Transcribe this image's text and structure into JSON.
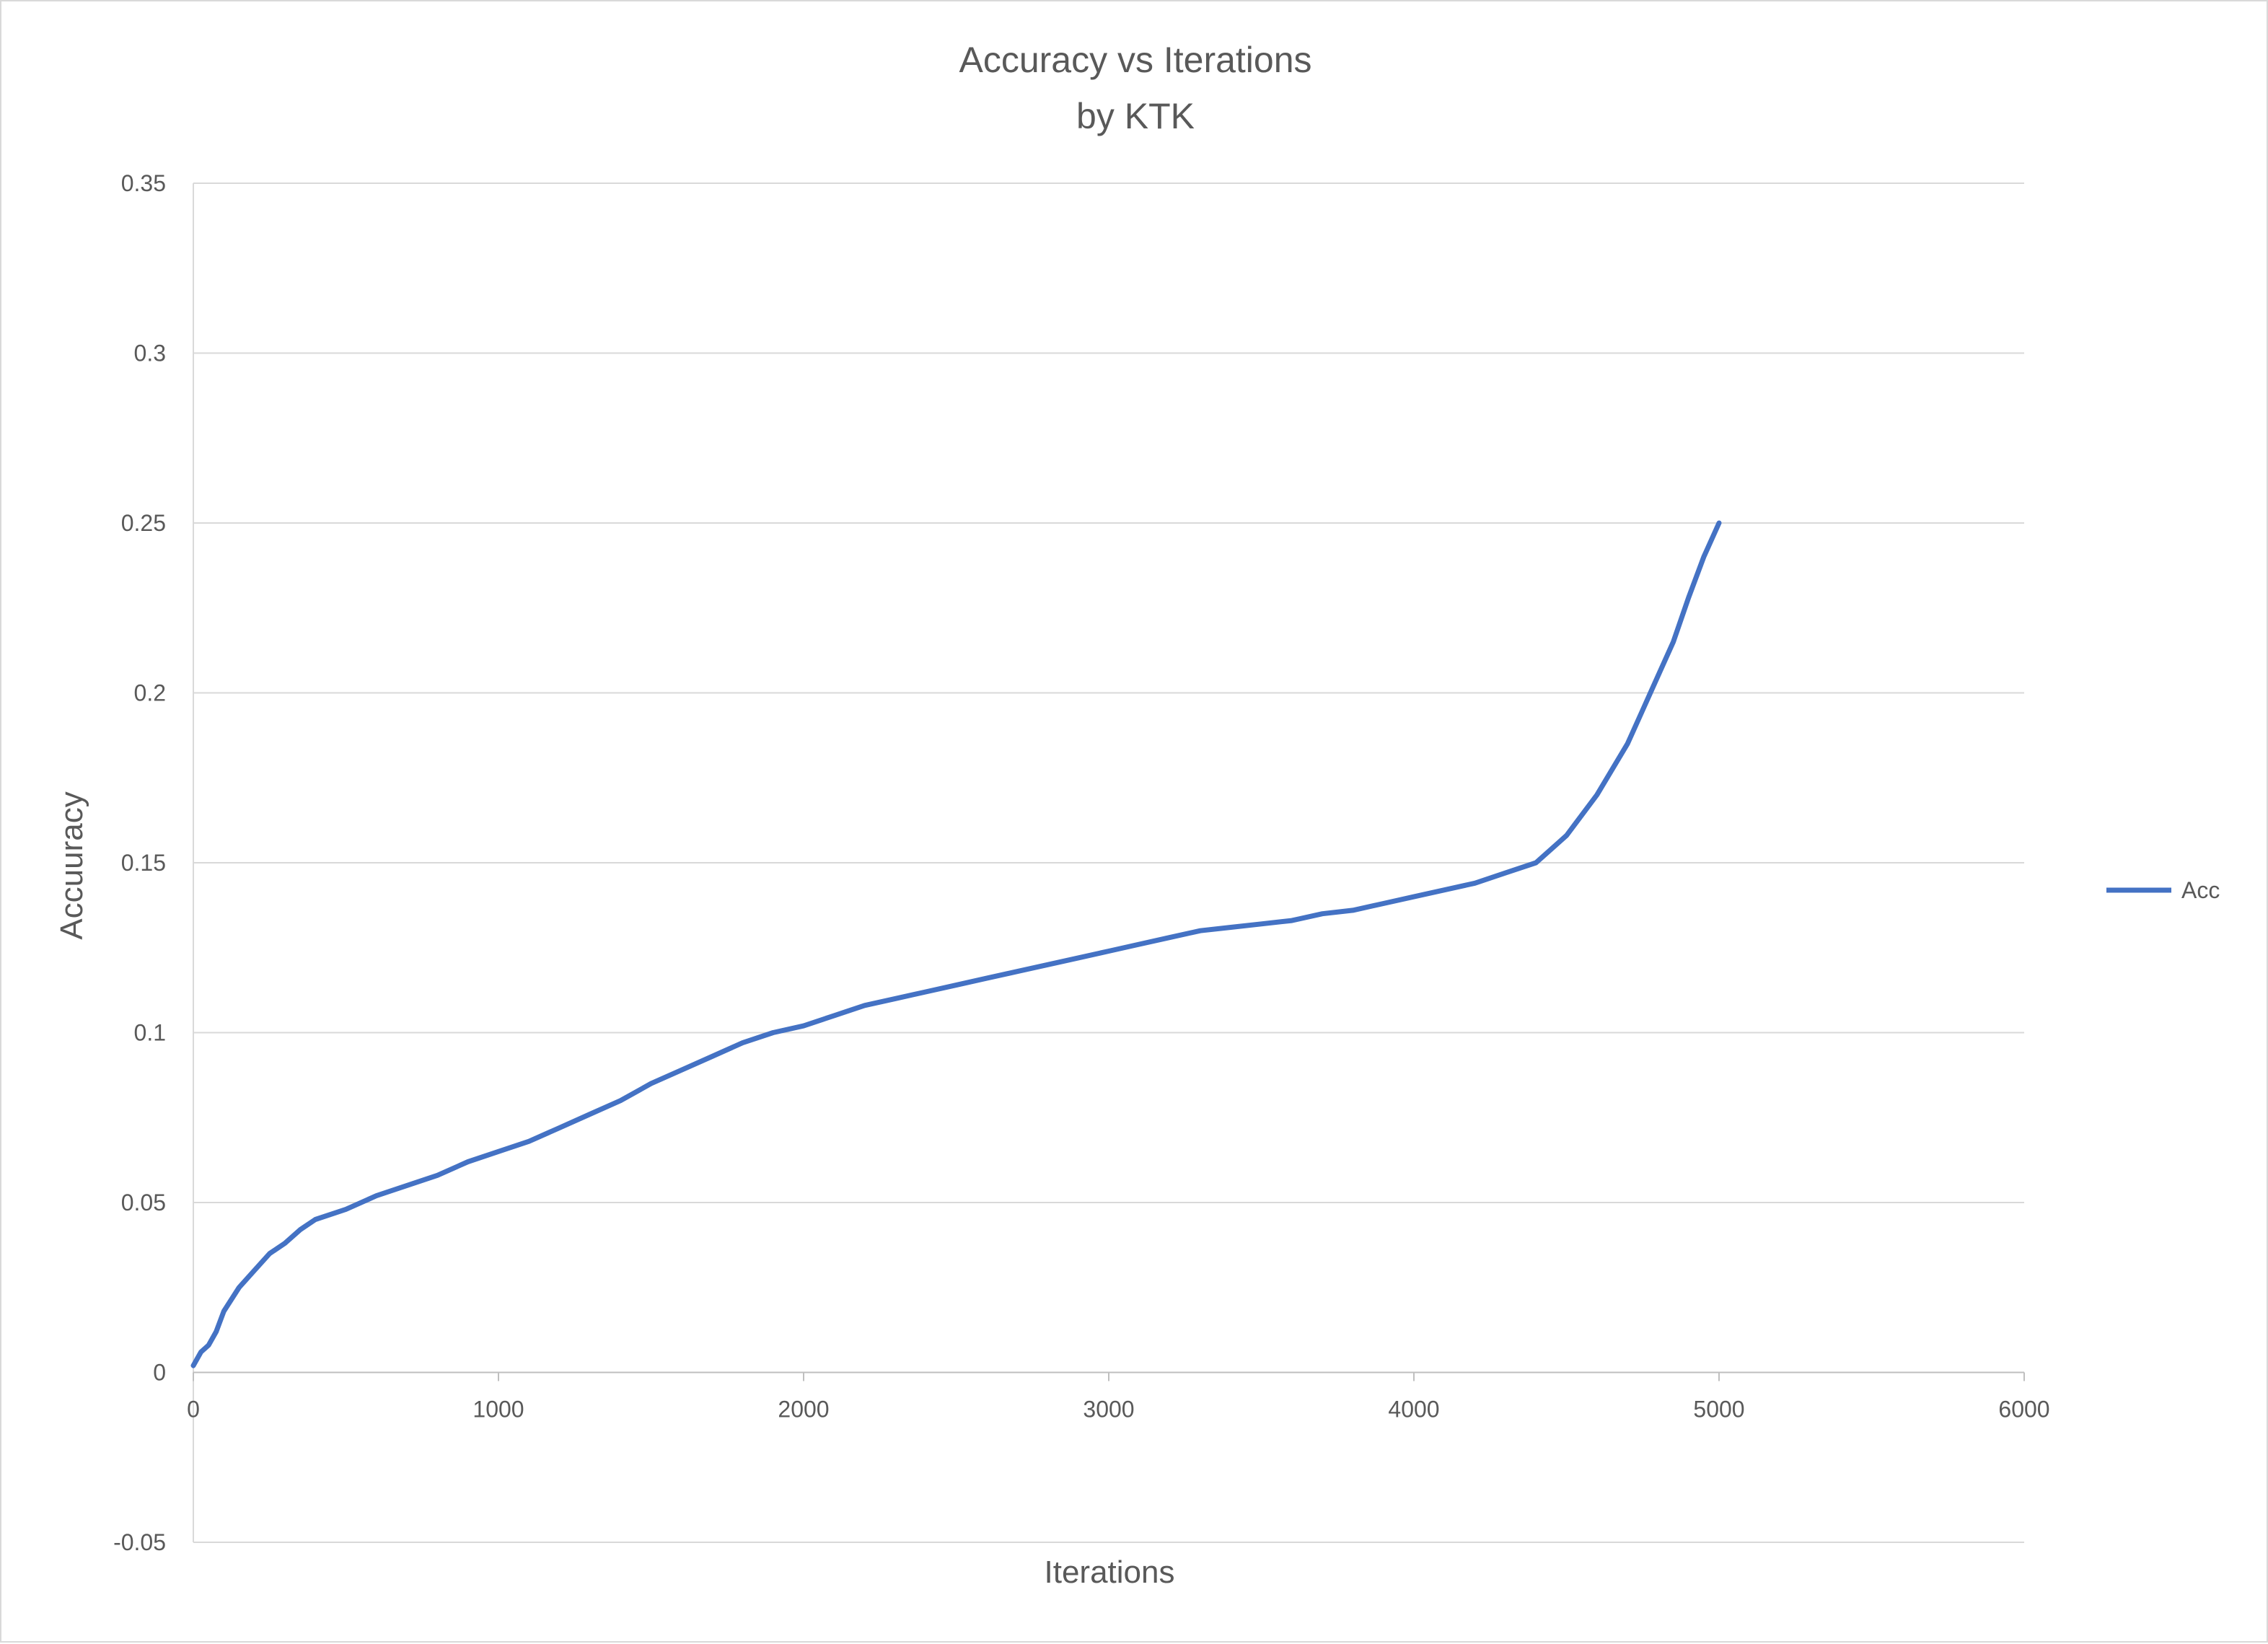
{
  "chart_data": {
    "type": "line",
    "title": "Accuracy vs Iterations",
    "subtitle": "by KTK",
    "xlabel": "Iterations",
    "ylabel": "Accuuracy",
    "xlim": [
      0,
      6000
    ],
    "ylim": [
      -0.05,
      0.35
    ],
    "x_ticks": [
      "0",
      "1000",
      "2000",
      "3000",
      "4000",
      "5000",
      "6000"
    ],
    "y_ticks": [
      "-0.05",
      "0",
      "0.05",
      "0.1",
      "0.15",
      "0.2",
      "0.25",
      "0.3",
      "0.35"
    ],
    "grid": "horizontal",
    "legend_position": "right",
    "series": [
      {
        "name": "Acc",
        "color": "#4472C4",
        "x": [
          0,
          25,
          50,
          75,
          100,
          150,
          200,
          250,
          300,
          350,
          400,
          500,
          600,
          700,
          800,
          900,
          1000,
          1100,
          1200,
          1300,
          1400,
          1500,
          1600,
          1700,
          1800,
          1900,
          2000,
          2100,
          2200,
          2300,
          2400,
          2500,
          2600,
          2700,
          2800,
          2900,
          3000,
          3100,
          3200,
          3300,
          3400,
          3500,
          3600,
          3700,
          3800,
          3900,
          4000,
          4100,
          4200,
          4300,
          4400,
          4500,
          4600,
          4700,
          4750,
          4800,
          4850,
          4900,
          4950,
          5000
        ],
        "values": [
          0.002,
          0.006,
          0.008,
          0.012,
          0.018,
          0.025,
          0.03,
          0.035,
          0.038,
          0.042,
          0.045,
          0.048,
          0.052,
          0.055,
          0.058,
          0.062,
          0.065,
          0.068,
          0.072,
          0.076,
          0.08,
          0.085,
          0.089,
          0.093,
          0.097,
          0.1,
          0.102,
          0.105,
          0.108,
          0.11,
          0.112,
          0.114,
          0.116,
          0.118,
          0.12,
          0.122,
          0.124,
          0.126,
          0.128,
          0.13,
          0.131,
          0.132,
          0.133,
          0.135,
          0.136,
          0.138,
          0.14,
          0.142,
          0.144,
          0.147,
          0.15,
          0.158,
          0.17,
          0.185,
          0.195,
          0.205,
          0.215,
          0.228,
          0.24,
          0.25
        ]
      }
    ]
  }
}
